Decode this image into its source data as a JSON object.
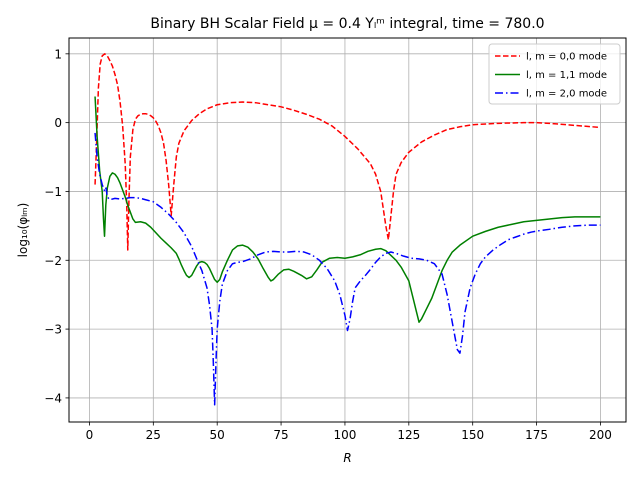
{
  "chart_data": {
    "type": "line",
    "title": "Binary BH Scalar Field μ = 0.4 Yₗᵐ integral, time = 780.0",
    "xlabel": "R",
    "ylabel": "log₁₀(φₗₘ)",
    "xlim": [
      -8,
      210
    ],
    "ylim": [
      -4.35,
      1.23
    ],
    "xticks": [
      0,
      25,
      50,
      75,
      100,
      125,
      150,
      175,
      200
    ],
    "yticks": [
      1,
      0,
      -1,
      -2,
      -3,
      -4
    ],
    "xtick_labels": [
      "0",
      "25",
      "50",
      "75",
      "100",
      "125",
      "150",
      "175",
      "200"
    ],
    "ytick_labels": [
      "1",
      "0",
      "−1",
      "−2",
      "−3",
      "−4"
    ],
    "grid": true,
    "legend_position": "top-right",
    "series": [
      {
        "name": "l, m = 0,0 mode",
        "color": "#ff0000",
        "linestyle": "dashed",
        "points": [
          [
            2.2,
            -0.9
          ],
          [
            2.8,
            -0.3
          ],
          [
            3.5,
            0.5
          ],
          [
            4.2,
            0.85
          ],
          [
            5,
            0.97
          ],
          [
            6,
            1.0
          ],
          [
            7,
            0.97
          ],
          [
            8,
            0.9
          ],
          [
            9,
            0.82
          ],
          [
            10,
            0.7
          ],
          [
            11,
            0.55
          ],
          [
            12,
            0.3
          ],
          [
            13,
            -0.05
          ],
          [
            14,
            -0.6
          ],
          [
            14.6,
            -1.2
          ],
          [
            15,
            -1.85
          ],
          [
            15.4,
            -1.2
          ],
          [
            16,
            -0.5
          ],
          [
            17,
            -0.1
          ],
          [
            18,
            0.05
          ],
          [
            19,
            0.1
          ],
          [
            20,
            0.12
          ],
          [
            21,
            0.13
          ],
          [
            22,
            0.13
          ],
          [
            23,
            0.12
          ],
          [
            24,
            0.1
          ],
          [
            25,
            0.07
          ],
          [
            26,
            0.02
          ],
          [
            27,
            -0.05
          ],
          [
            28,
            -0.15
          ],
          [
            29,
            -0.3
          ],
          [
            30,
            -0.55
          ],
          [
            31,
            -0.9
          ],
          [
            32,
            -1.35
          ],
          [
            33,
            -0.9
          ],
          [
            34,
            -0.5
          ],
          [
            35,
            -0.3
          ],
          [
            37,
            -0.12
          ],
          [
            40,
            0.03
          ],
          [
            43,
            0.13
          ],
          [
            46,
            0.2
          ],
          [
            50,
            0.26
          ],
          [
            55,
            0.29
          ],
          [
            60,
            0.3
          ],
          [
            65,
            0.29
          ],
          [
            70,
            0.26
          ],
          [
            75,
            0.23
          ],
          [
            80,
            0.18
          ],
          [
            85,
            0.12
          ],
          [
            90,
            0.05
          ],
          [
            95,
            -0.05
          ],
          [
            100,
            -0.2
          ],
          [
            105,
            -0.38
          ],
          [
            110,
            -0.6
          ],
          [
            112,
            -0.75
          ],
          [
            114,
            -1.0
          ],
          [
            115,
            -1.25
          ],
          [
            116,
            -1.5
          ],
          [
            117,
            -1.7
          ],
          [
            118,
            -1.35
          ],
          [
            119,
            -1.0
          ],
          [
            120,
            -0.75
          ],
          [
            122,
            -0.58
          ],
          [
            125,
            -0.43
          ],
          [
            130,
            -0.28
          ],
          [
            135,
            -0.18
          ],
          [
            140,
            -0.1
          ],
          [
            145,
            -0.06
          ],
          [
            150,
            -0.03
          ],
          [
            160,
            -0.01
          ],
          [
            170,
            0.0
          ],
          [
            175,
            0.0
          ],
          [
            180,
            -0.01
          ],
          [
            190,
            -0.04
          ],
          [
            200,
            -0.07
          ]
        ]
      },
      {
        "name": "l, m = 1,1 mode",
        "color": "#008000",
        "linestyle": "solid",
        "points": [
          [
            2.2,
            0.38
          ],
          [
            3,
            -0.2
          ],
          [
            4,
            -0.7
          ],
          [
            5,
            -1.0
          ],
          [
            5.5,
            -1.4
          ],
          [
            5.9,
            -1.65
          ],
          [
            6.4,
            -1.2
          ],
          [
            7,
            -0.95
          ],
          [
            8,
            -0.78
          ],
          [
            9,
            -0.73
          ],
          [
            10,
            -0.75
          ],
          [
            11,
            -0.8
          ],
          [
            12,
            -0.88
          ],
          [
            13,
            -0.98
          ],
          [
            14,
            -1.08
          ],
          [
            15,
            -1.2
          ],
          [
            16,
            -1.3
          ],
          [
            17,
            -1.4
          ],
          [
            18,
            -1.45
          ],
          [
            20,
            -1.44
          ],
          [
            22,
            -1.46
          ],
          [
            24,
            -1.52
          ],
          [
            26,
            -1.6
          ],
          [
            28,
            -1.68
          ],
          [
            30,
            -1.75
          ],
          [
            32,
            -1.82
          ],
          [
            34,
            -1.9
          ],
          [
            35,
            -1.98
          ],
          [
            36,
            -2.07
          ],
          [
            37,
            -2.15
          ],
          [
            38,
            -2.22
          ],
          [
            39,
            -2.25
          ],
          [
            40,
            -2.22
          ],
          [
            41,
            -2.15
          ],
          [
            42,
            -2.08
          ],
          [
            43,
            -2.03
          ],
          [
            44,
            -2.02
          ],
          [
            45,
            -2.03
          ],
          [
            46,
            -2.06
          ],
          [
            47,
            -2.12
          ],
          [
            48,
            -2.2
          ],
          [
            49,
            -2.28
          ],
          [
            50,
            -2.32
          ],
          [
            51,
            -2.28
          ],
          [
            52,
            -2.17
          ],
          [
            54,
            -2.0
          ],
          [
            56,
            -1.85
          ],
          [
            58,
            -1.79
          ],
          [
            60,
            -1.78
          ],
          [
            62,
            -1.81
          ],
          [
            64,
            -1.88
          ],
          [
            66,
            -1.98
          ],
          [
            68,
            -2.12
          ],
          [
            70,
            -2.25
          ],
          [
            71,
            -2.3
          ],
          [
            72,
            -2.28
          ],
          [
            74,
            -2.2
          ],
          [
            76,
            -2.14
          ],
          [
            78,
            -2.13
          ],
          [
            80,
            -2.16
          ],
          [
            83,
            -2.22
          ],
          [
            85,
            -2.27
          ],
          [
            87,
            -2.24
          ],
          [
            89,
            -2.14
          ],
          [
            91,
            -2.03
          ],
          [
            94,
            -1.97
          ],
          [
            97,
            -1.96
          ],
          [
            100,
            -1.97
          ],
          [
            103,
            -1.95
          ],
          [
            106,
            -1.92
          ],
          [
            109,
            -1.87
          ],
          [
            112,
            -1.84
          ],
          [
            114,
            -1.83
          ],
          [
            116,
            -1.86
          ],
          [
            118,
            -1.93
          ],
          [
            120,
            -2.0
          ],
          [
            122,
            -2.1
          ],
          [
            125,
            -2.3
          ],
          [
            127,
            -2.6
          ],
          [
            128,
            -2.75
          ],
          [
            129,
            -2.9
          ],
          [
            130,
            -2.85
          ],
          [
            132,
            -2.7
          ],
          [
            134,
            -2.55
          ],
          [
            136,
            -2.35
          ],
          [
            138,
            -2.15
          ],
          [
            140,
            -2.0
          ],
          [
            142,
            -1.88
          ],
          [
            145,
            -1.78
          ],
          [
            150,
            -1.65
          ],
          [
            155,
            -1.58
          ],
          [
            160,
            -1.52
          ],
          [
            165,
            -1.48
          ],
          [
            170,
            -1.44
          ],
          [
            175,
            -1.42
          ],
          [
            180,
            -1.4
          ],
          [
            185,
            -1.38
          ],
          [
            190,
            -1.37
          ],
          [
            195,
            -1.37
          ],
          [
            200,
            -1.37
          ]
        ]
      },
      {
        "name": "l, m = 2,0 mode",
        "color": "#0000ff",
        "linestyle": "dashdot",
        "points": [
          [
            2.2,
            -0.15
          ],
          [
            3,
            -0.5
          ],
          [
            4,
            -0.75
          ],
          [
            5,
            -0.9
          ],
          [
            6,
            -1.0
          ],
          [
            6.5,
            -0.95
          ],
          [
            7,
            -1.08
          ],
          [
            8,
            -1.12
          ],
          [
            10,
            -1.1
          ],
          [
            12,
            -1.11
          ],
          [
            14,
            -1.1
          ],
          [
            16,
            -1.09
          ],
          [
            18,
            -1.09
          ],
          [
            20,
            -1.1
          ],
          [
            22,
            -1.12
          ],
          [
            25,
            -1.15
          ],
          [
            28,
            -1.23
          ],
          [
            31,
            -1.33
          ],
          [
            34,
            -1.45
          ],
          [
            37,
            -1.6
          ],
          [
            40,
            -1.8
          ],
          [
            42,
            -1.98
          ],
          [
            44,
            -2.15
          ],
          [
            46,
            -2.4
          ],
          [
            47,
            -2.65
          ],
          [
            48,
            -3.0
          ],
          [
            48.5,
            -3.5
          ],
          [
            49,
            -4.1
          ],
          [
            49.5,
            -3.5
          ],
          [
            50,
            -3.0
          ],
          [
            51,
            -2.6
          ],
          [
            52,
            -2.35
          ],
          [
            54,
            -2.15
          ],
          [
            56,
            -2.05
          ],
          [
            58,
            -2.03
          ],
          [
            60,
            -2.02
          ],
          [
            63,
            -1.98
          ],
          [
            66,
            -1.92
          ],
          [
            69,
            -1.88
          ],
          [
            72,
            -1.87
          ],
          [
            75,
            -1.88
          ],
          [
            78,
            -1.88
          ],
          [
            81,
            -1.87
          ],
          [
            84,
            -1.88
          ],
          [
            87,
            -1.92
          ],
          [
            90,
            -2.0
          ],
          [
            93,
            -2.12
          ],
          [
            96,
            -2.3
          ],
          [
            98,
            -2.5
          ],
          [
            100,
            -2.8
          ],
          [
            101,
            -3.02
          ],
          [
            102,
            -2.85
          ],
          [
            103,
            -2.6
          ],
          [
            104,
            -2.4
          ],
          [
            106,
            -2.3
          ],
          [
            108,
            -2.22
          ],
          [
            110,
            -2.13
          ],
          [
            112,
            -2.03
          ],
          [
            114,
            -1.95
          ],
          [
            116,
            -1.9
          ],
          [
            118,
            -1.88
          ],
          [
            120,
            -1.9
          ],
          [
            123,
            -1.94
          ],
          [
            126,
            -1.97
          ],
          [
            129,
            -1.98
          ],
          [
            132,
            -2.0
          ],
          [
            135,
            -2.05
          ],
          [
            138,
            -2.2
          ],
          [
            140,
            -2.5
          ],
          [
            142,
            -2.9
          ],
          [
            143,
            -3.1
          ],
          [
            144,
            -3.3
          ],
          [
            145,
            -3.35
          ],
          [
            146,
            -3.1
          ],
          [
            147,
            -2.75
          ],
          [
            149,
            -2.4
          ],
          [
            151,
            -2.2
          ],
          [
            153,
            -2.05
          ],
          [
            155,
            -1.95
          ],
          [
            158,
            -1.85
          ],
          [
            161,
            -1.77
          ],
          [
            164,
            -1.7
          ],
          [
            167,
            -1.66
          ],
          [
            170,
            -1.62
          ],
          [
            173,
            -1.59
          ],
          [
            176,
            -1.57
          ],
          [
            180,
            -1.55
          ],
          [
            185,
            -1.52
          ],
          [
            190,
            -1.5
          ],
          [
            195,
            -1.49
          ],
          [
            200,
            -1.49
          ]
        ]
      }
    ]
  }
}
